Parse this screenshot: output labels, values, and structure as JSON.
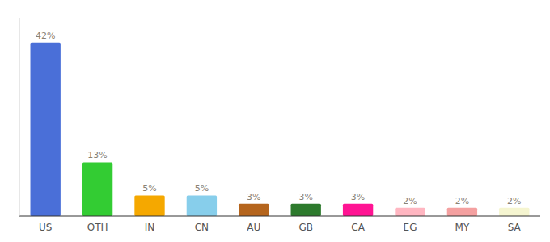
{
  "chart_data": {
    "type": "bar",
    "categories": [
      "US",
      "OTH",
      "IN",
      "CN",
      "AU",
      "GB",
      "CA",
      "EG",
      "MY",
      "SA"
    ],
    "values": [
      42,
      13,
      5,
      5,
      3,
      3,
      3,
      2,
      2,
      2
    ],
    "value_labels": [
      "42%",
      "13%",
      "5%",
      "5%",
      "3%",
      "3%",
      "3%",
      "2%",
      "2%",
      "2%"
    ],
    "colors": [
      "#4a6fd8",
      "#33cc33",
      "#f5a800",
      "#87ceeb",
      "#b5651d",
      "#2d7a2d",
      "#ff1493",
      "#ffb6c1",
      "#f4a0a0",
      "#f5f5d0"
    ],
    "ylim": [
      0,
      48
    ],
    "data_labels": true,
    "tick_labels": "x",
    "grid": false
  }
}
